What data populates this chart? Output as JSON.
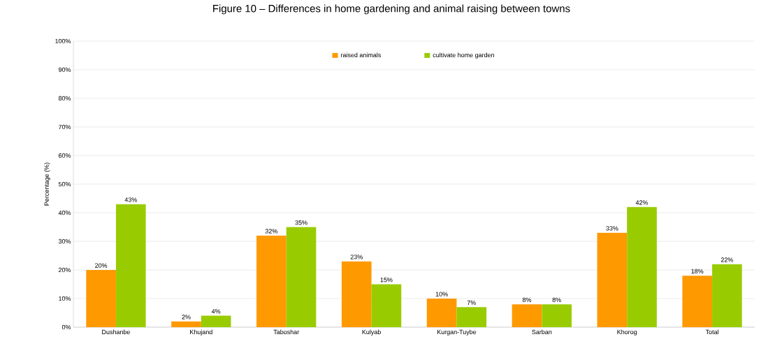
{
  "chart_data": {
    "type": "bar",
    "title": "Figure 10 – Differences in home gardening and animal raising between towns",
    "ylabel": "Percentage (%)",
    "categories": [
      "Dushanbe",
      "Khujand",
      "Taboshar",
      "Kulyab",
      "Kurgan-Tuybe",
      "Sarban",
      "Khorog",
      "Total"
    ],
    "series": [
      {
        "name": "raised animals",
        "color": "#ff9900",
        "values": [
          20,
          2,
          32,
          23,
          10,
          8,
          33,
          18
        ],
        "value_labels": [
          "20%",
          "2%",
          "32%",
          "23%",
          "10%",
          "8%",
          "33%",
          "18%"
        ]
      },
      {
        "name": "cultivate home garden",
        "color": "#99cc00",
        "values": [
          43,
          4,
          35,
          15,
          7,
          8,
          42,
          22
        ],
        "value_labels": [
          "43%",
          "4%",
          "35%",
          "15%",
          "7%",
          "8%",
          "42%",
          "22%"
        ]
      }
    ],
    "ylim": [
      0,
      100
    ],
    "yticks": [
      {
        "value": 0,
        "label": "0%"
      },
      {
        "value": 10,
        "label": "10%"
      },
      {
        "value": 20,
        "label": "20%"
      },
      {
        "value": 30,
        "label": "30%"
      },
      {
        "value": 40,
        "label": "40%"
      },
      {
        "value": 50,
        "label": "50%"
      },
      {
        "value": 60,
        "label": "60%"
      },
      {
        "value": 70,
        "label": "70%"
      },
      {
        "value": 80,
        "label": "80%"
      },
      {
        "value": 90,
        "label": "90%"
      },
      {
        "value": 100,
        "label": "100%"
      }
    ],
    "grid": "y",
    "legend": "top"
  }
}
